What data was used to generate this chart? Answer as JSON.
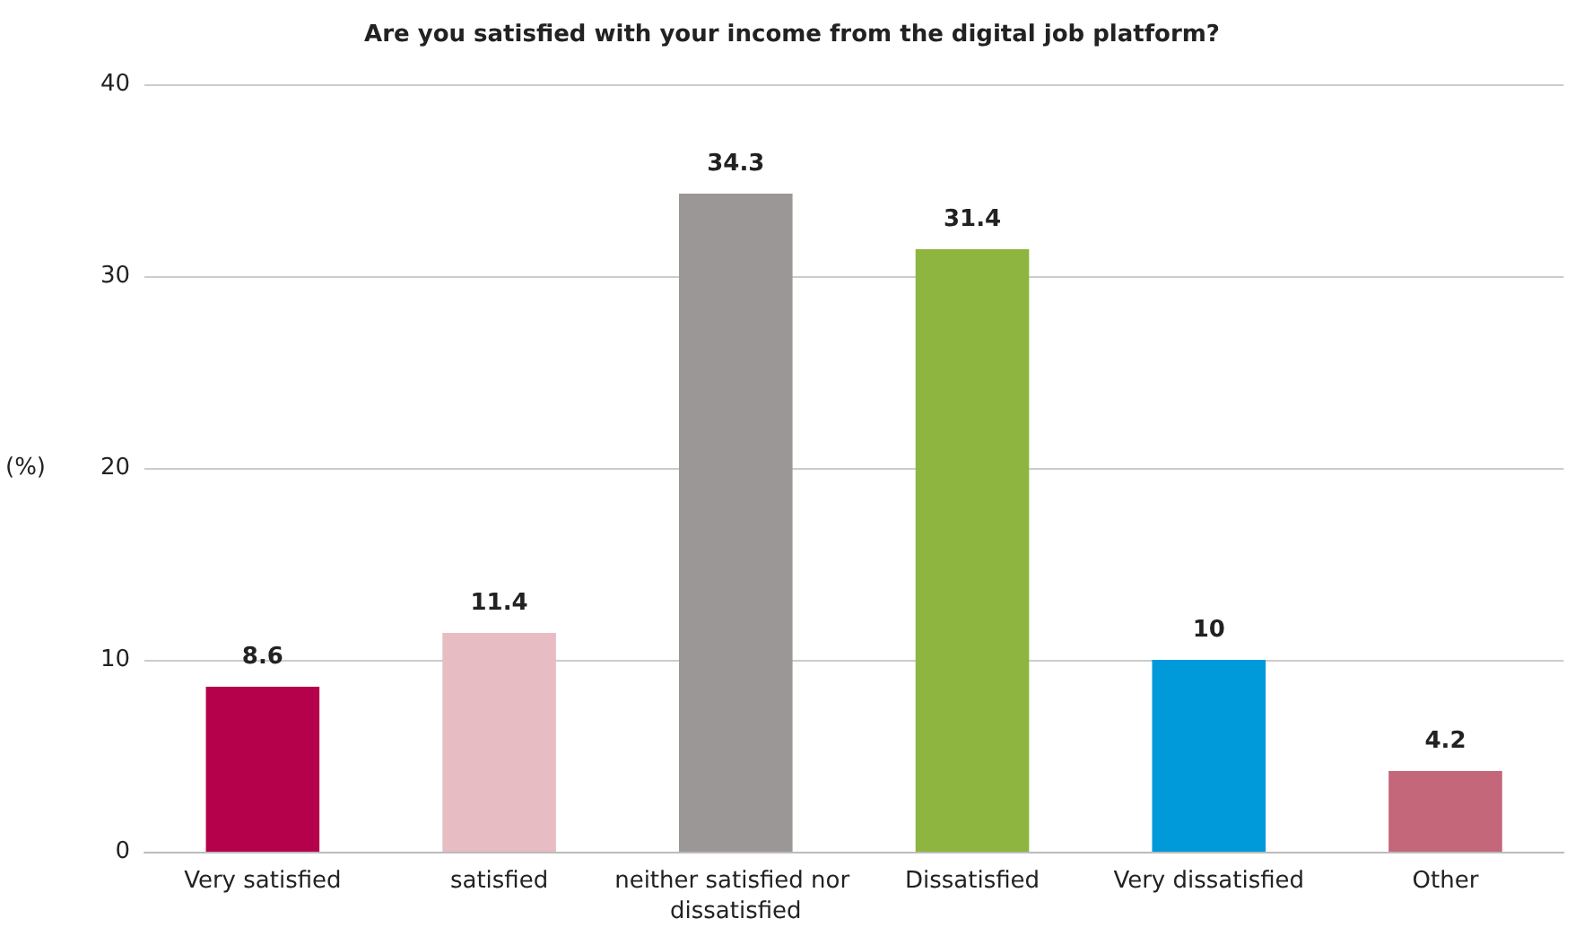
{
  "chart_data": {
    "type": "bar",
    "title": "Are you satisfied with your income from the digital job platform?",
    "ylabel": "(%)",
    "categories": [
      "Very satisfied",
      "satisfied",
      "neither satisfied nor dissatisfied",
      "Dissatisfied",
      "Very dissatisfied",
      "Other"
    ],
    "values": [
      8.6,
      11.4,
      34.3,
      31.4,
      10,
      4.2
    ],
    "colors": [
      "#b5004b",
      "#e8bcc3",
      "#9b9797",
      "#8db53f",
      "#0099d9",
      "#c4677a"
    ],
    "ylim": [
      0,
      40
    ],
    "yticks": [
      0,
      10,
      20,
      30,
      40
    ],
    "grid": "y",
    "data_labels": true
  }
}
